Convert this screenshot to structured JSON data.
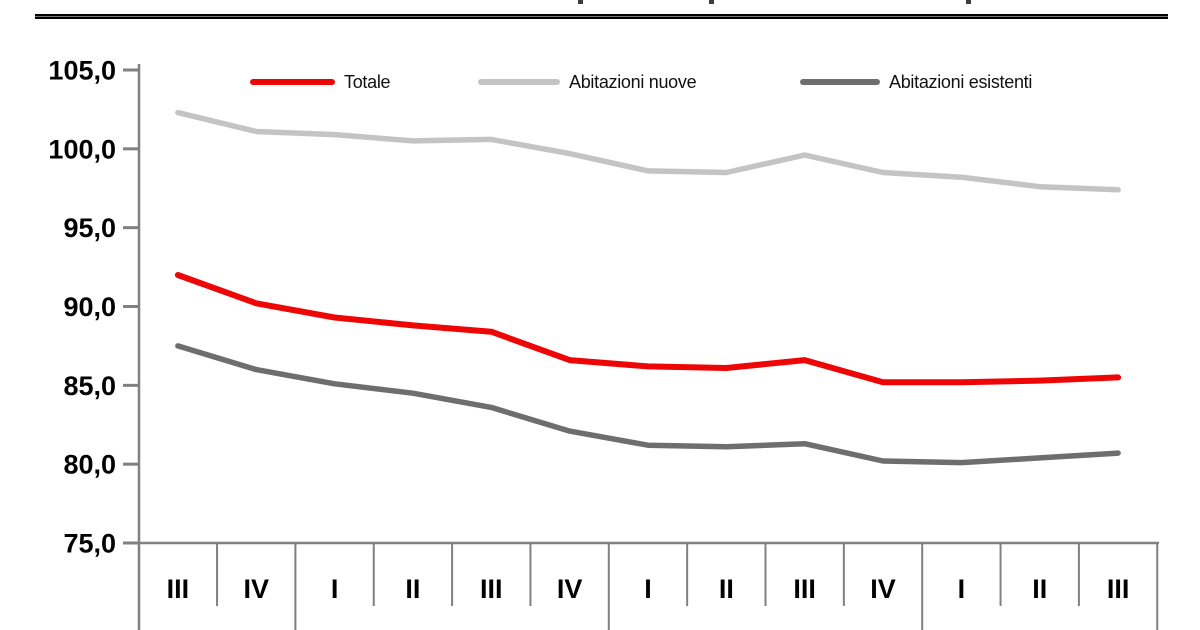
{
  "header": {
    "rule_color": "#000000",
    "cropped_title_fragments": true
  },
  "chart_data": {
    "type": "line",
    "x_categories": [
      "III",
      "IV",
      "I",
      "II",
      "III",
      "IV",
      "I",
      "II",
      "III",
      "IV",
      "I",
      "II",
      "III"
    ],
    "year_boundaries_after_index": [
      1,
      5,
      9
    ],
    "series": [
      {
        "name": "Totale",
        "color": "#ee0505",
        "values": [
          92.0,
          90.2,
          89.3,
          88.8,
          88.4,
          86.6,
          86.2,
          86.1,
          86.6,
          85.2,
          85.2,
          85.3,
          85.5
        ]
      },
      {
        "name": "Abitazioni nuove",
        "color": "#c4c4c4",
        "values": [
          102.3,
          101.1,
          100.9,
          100.5,
          100.6,
          99.7,
          98.6,
          98.5,
          99.6,
          98.5,
          98.2,
          97.6,
          97.4
        ]
      },
      {
        "name": "Abitazioni esistenti",
        "color": "#6e6e6e",
        "values": [
          87.5,
          86.0,
          85.1,
          84.5,
          83.6,
          82.1,
          81.2,
          81.1,
          81.3,
          80.2,
          80.1,
          80.4,
          80.7
        ]
      }
    ],
    "y_ticks": [
      {
        "v": 105,
        "label": "105,0"
      },
      {
        "v": 100,
        "label": "100,0"
      },
      {
        "v": 95,
        "label": "95,0"
      },
      {
        "v": 90,
        "label": "90,0"
      },
      {
        "v": 85,
        "label": "85,0"
      },
      {
        "v": 80,
        "label": "80,0"
      },
      {
        "v": 75,
        "label": "75,0"
      }
    ],
    "ylim": [
      75,
      105
    ],
    "grid": false,
    "legend_position": "top",
    "axis_color": "#808080",
    "label_color": "#000000"
  }
}
